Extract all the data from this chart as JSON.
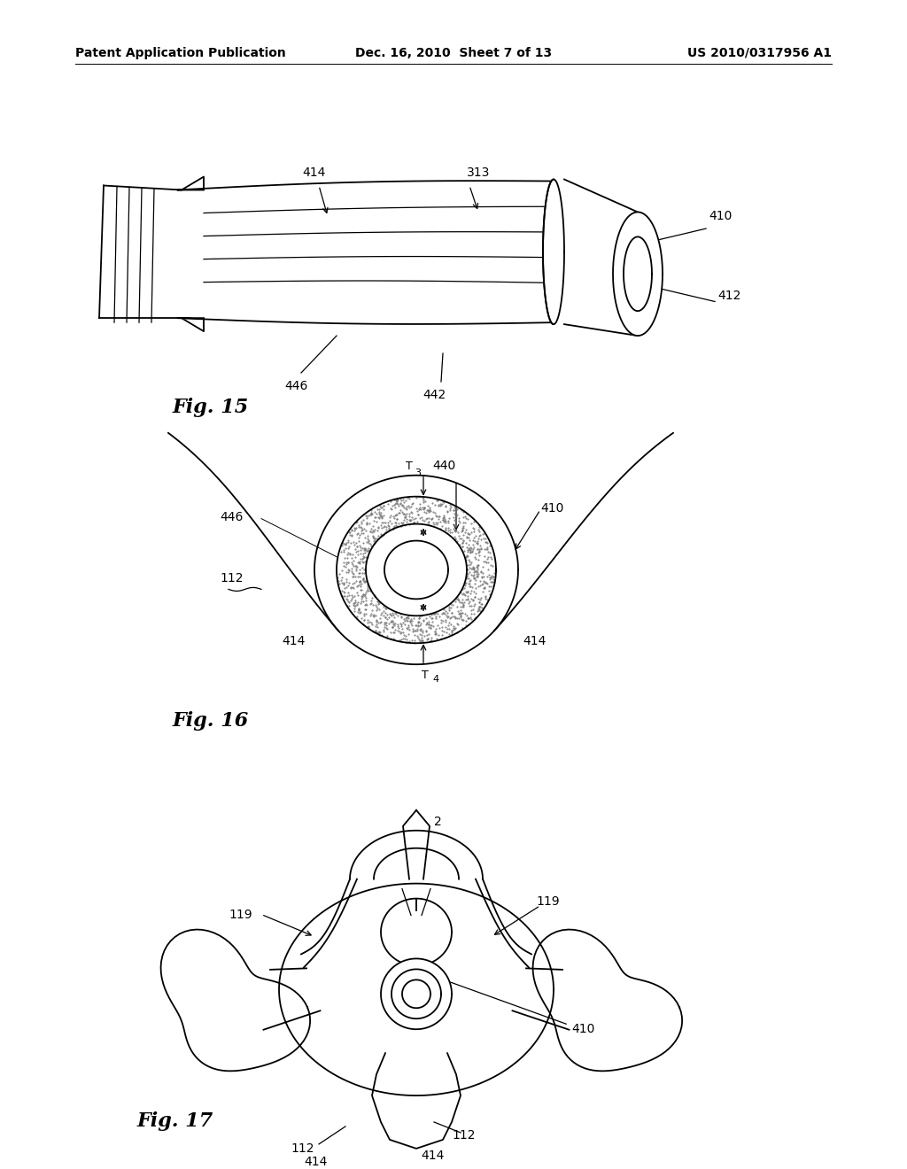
{
  "background_color": "#ffffff",
  "header_left": "Patent Application Publication",
  "header_center": "Dec. 16, 2010  Sheet 7 of 13",
  "header_right": "US 2010/0317956 A1",
  "header_fontsize": 10,
  "fig15_label": "Fig. 15",
  "fig16_label": "Fig. 16",
  "fig17_label": "Fig. 17",
  "label_fontsize": 16,
  "annotation_fontsize": 10,
  "line_color": "#000000"
}
